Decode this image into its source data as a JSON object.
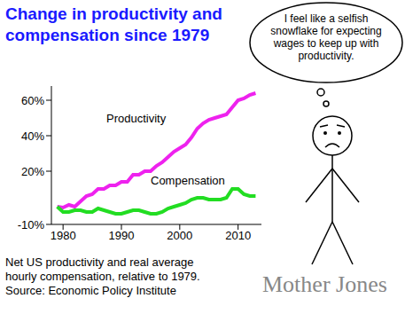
{
  "chart_data": {
    "type": "line",
    "title": "Change in productivity and compensation since 1979",
    "x": [
      1979,
      1980,
      1981,
      1982,
      1983,
      1984,
      1985,
      1986,
      1987,
      1988,
      1989,
      1990,
      1991,
      1992,
      1993,
      1994,
      1995,
      1996,
      1997,
      1998,
      1999,
      2000,
      2001,
      2002,
      2003,
      2004,
      2005,
      2006,
      2007,
      2008,
      2009,
      2010,
      2011,
      2012,
      2013
    ],
    "series": [
      {
        "name": "Productivity",
        "color": "#ee22ee",
        "values": [
          0,
          -0.5,
          1,
          0,
          3,
          6,
          7,
          10,
          10,
          12,
          12,
          14,
          14,
          18,
          18,
          20,
          20,
          23,
          25,
          28,
          31,
          33,
          35,
          39,
          44,
          47,
          49,
          50,
          51,
          52,
          56,
          60,
          61,
          63,
          64
        ]
      },
      {
        "name": "Compensation",
        "color": "#22dd22",
        "values": [
          0,
          -3,
          -3,
          -2,
          -2,
          -3,
          -3,
          -1,
          -2,
          -3,
          -4,
          -4,
          -3,
          -2,
          -2,
          -3,
          -4,
          -4,
          -3,
          -1,
          0,
          1,
          2,
          4,
          5,
          5,
          4,
          4,
          4,
          5,
          10,
          10,
          7,
          6,
          6
        ]
      }
    ],
    "xlim": [
      1978,
      2014
    ],
    "xticks": [
      1980,
      1990,
      2000,
      2010
    ],
    "ylim": [
      -10,
      68
    ],
    "yticks": [
      {
        "value": -10,
        "label": "-10%"
      },
      {
        "value": 20,
        "label": "20%"
      },
      {
        "value": 40,
        "label": "40%"
      },
      {
        "value": 60,
        "label": "60%"
      }
    ],
    "grid": false,
    "legend": false,
    "annotations": {
      "thought": "I feel like a selfish snowflake for expecting wages to keep up with productivity.",
      "note": "Net US productivity and real average hourly compensation, relative to 1979.",
      "source": "Source: Economic Policy Institute",
      "credit": "Mother Jones"
    }
  }
}
